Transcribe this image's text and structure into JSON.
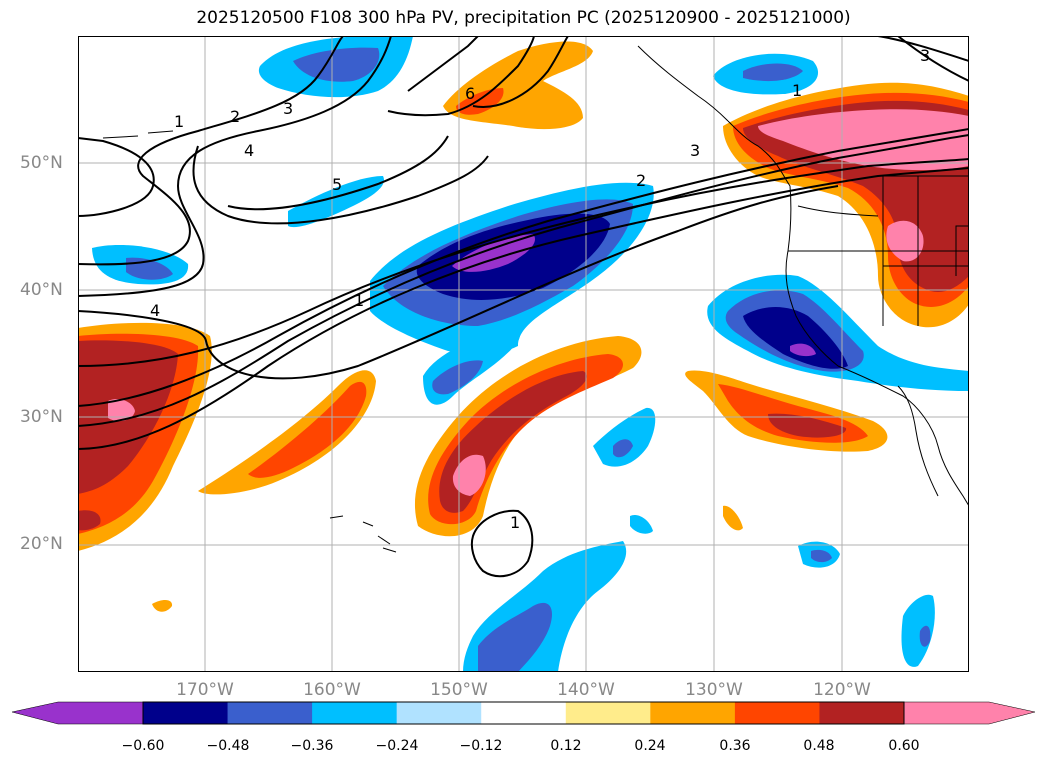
{
  "title": "2025120500 F108 300 hPa PV, precipitation PC (2025120900 - 2025121000)",
  "lat_labels": [
    "50°N",
    "40°N",
    "30°N",
    "20°N"
  ],
  "lon_labels": [
    "170°W",
    "160°W",
    "150°W",
    "140°W",
    "130°W",
    "120°W"
  ],
  "contour_labels": [
    "1",
    "2",
    "3",
    "4",
    "5",
    "6",
    "1",
    "2",
    "3",
    "4",
    "1",
    "1",
    "3"
  ],
  "colorbar": {
    "ticks": [
      "−0.60",
      "−0.48",
      "−0.36",
      "−0.24",
      "−0.12",
      "0.12",
      "0.24",
      "0.36",
      "0.48",
      "0.60"
    ],
    "colors": [
      "#9932cc",
      "#00008b",
      "#3a5fcd",
      "#00bfff",
      "#b0e2ff",
      "#ffffff",
      "#ffec8b",
      "#ffa500",
      "#ff4500",
      "#b22222",
      "#ff82ab"
    ]
  },
  "colors": {
    "neg_strong": "#9932cc",
    "neg_darkblue": "#00008b",
    "neg_blue": "#3a5fcd",
    "neg_cyan": "#00bfff",
    "pos_orange": "#ffa500",
    "pos_redorange": "#ff4500",
    "pos_red": "#b22222",
    "pos_pink": "#ff82ab"
  }
}
